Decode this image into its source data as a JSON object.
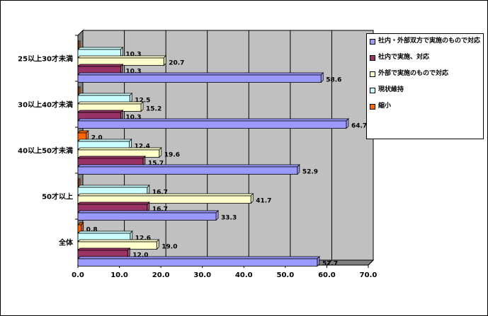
{
  "chart_data": {
    "type": "bar",
    "orientation": "horizontal",
    "categories": [
      "25以上30才未満",
      "30以上40才未満",
      "40以上50才未満",
      "50才以上",
      "全体"
    ],
    "series": [
      {
        "name": "社内・外部双方で実施のもので対応",
        "color": "#9999FF",
        "values": [
          58.6,
          64.7,
          52.9,
          33.3,
          57.7
        ]
      },
      {
        "name": "社内で実施、対応",
        "color": "#993366",
        "values": [
          10.3,
          10.3,
          15.7,
          16.7,
          12.0
        ]
      },
      {
        "name": "外部で実施のもので対応",
        "color": "#FFFFCC",
        "values": [
          20.7,
          15.2,
          19.6,
          41.7,
          19.0
        ]
      },
      {
        "name": "現状維持",
        "color": "#CCFFFF",
        "values": [
          10.3,
          12.5,
          12.4,
          16.7,
          12.6
        ]
      },
      {
        "name": "縮小",
        "color": "#FF6600",
        "values": [
          null,
          null,
          2.0,
          null,
          0.8
        ]
      }
    ],
    "xlim": [
      0,
      70
    ],
    "ticks": [
      "0.0",
      "10.0",
      "20.0",
      "30.0",
      "40.0",
      "50.0",
      "60.0",
      "70.0"
    ],
    "grid": true,
    "legend_position": "right",
    "wall_color": "#C0C0C0"
  }
}
